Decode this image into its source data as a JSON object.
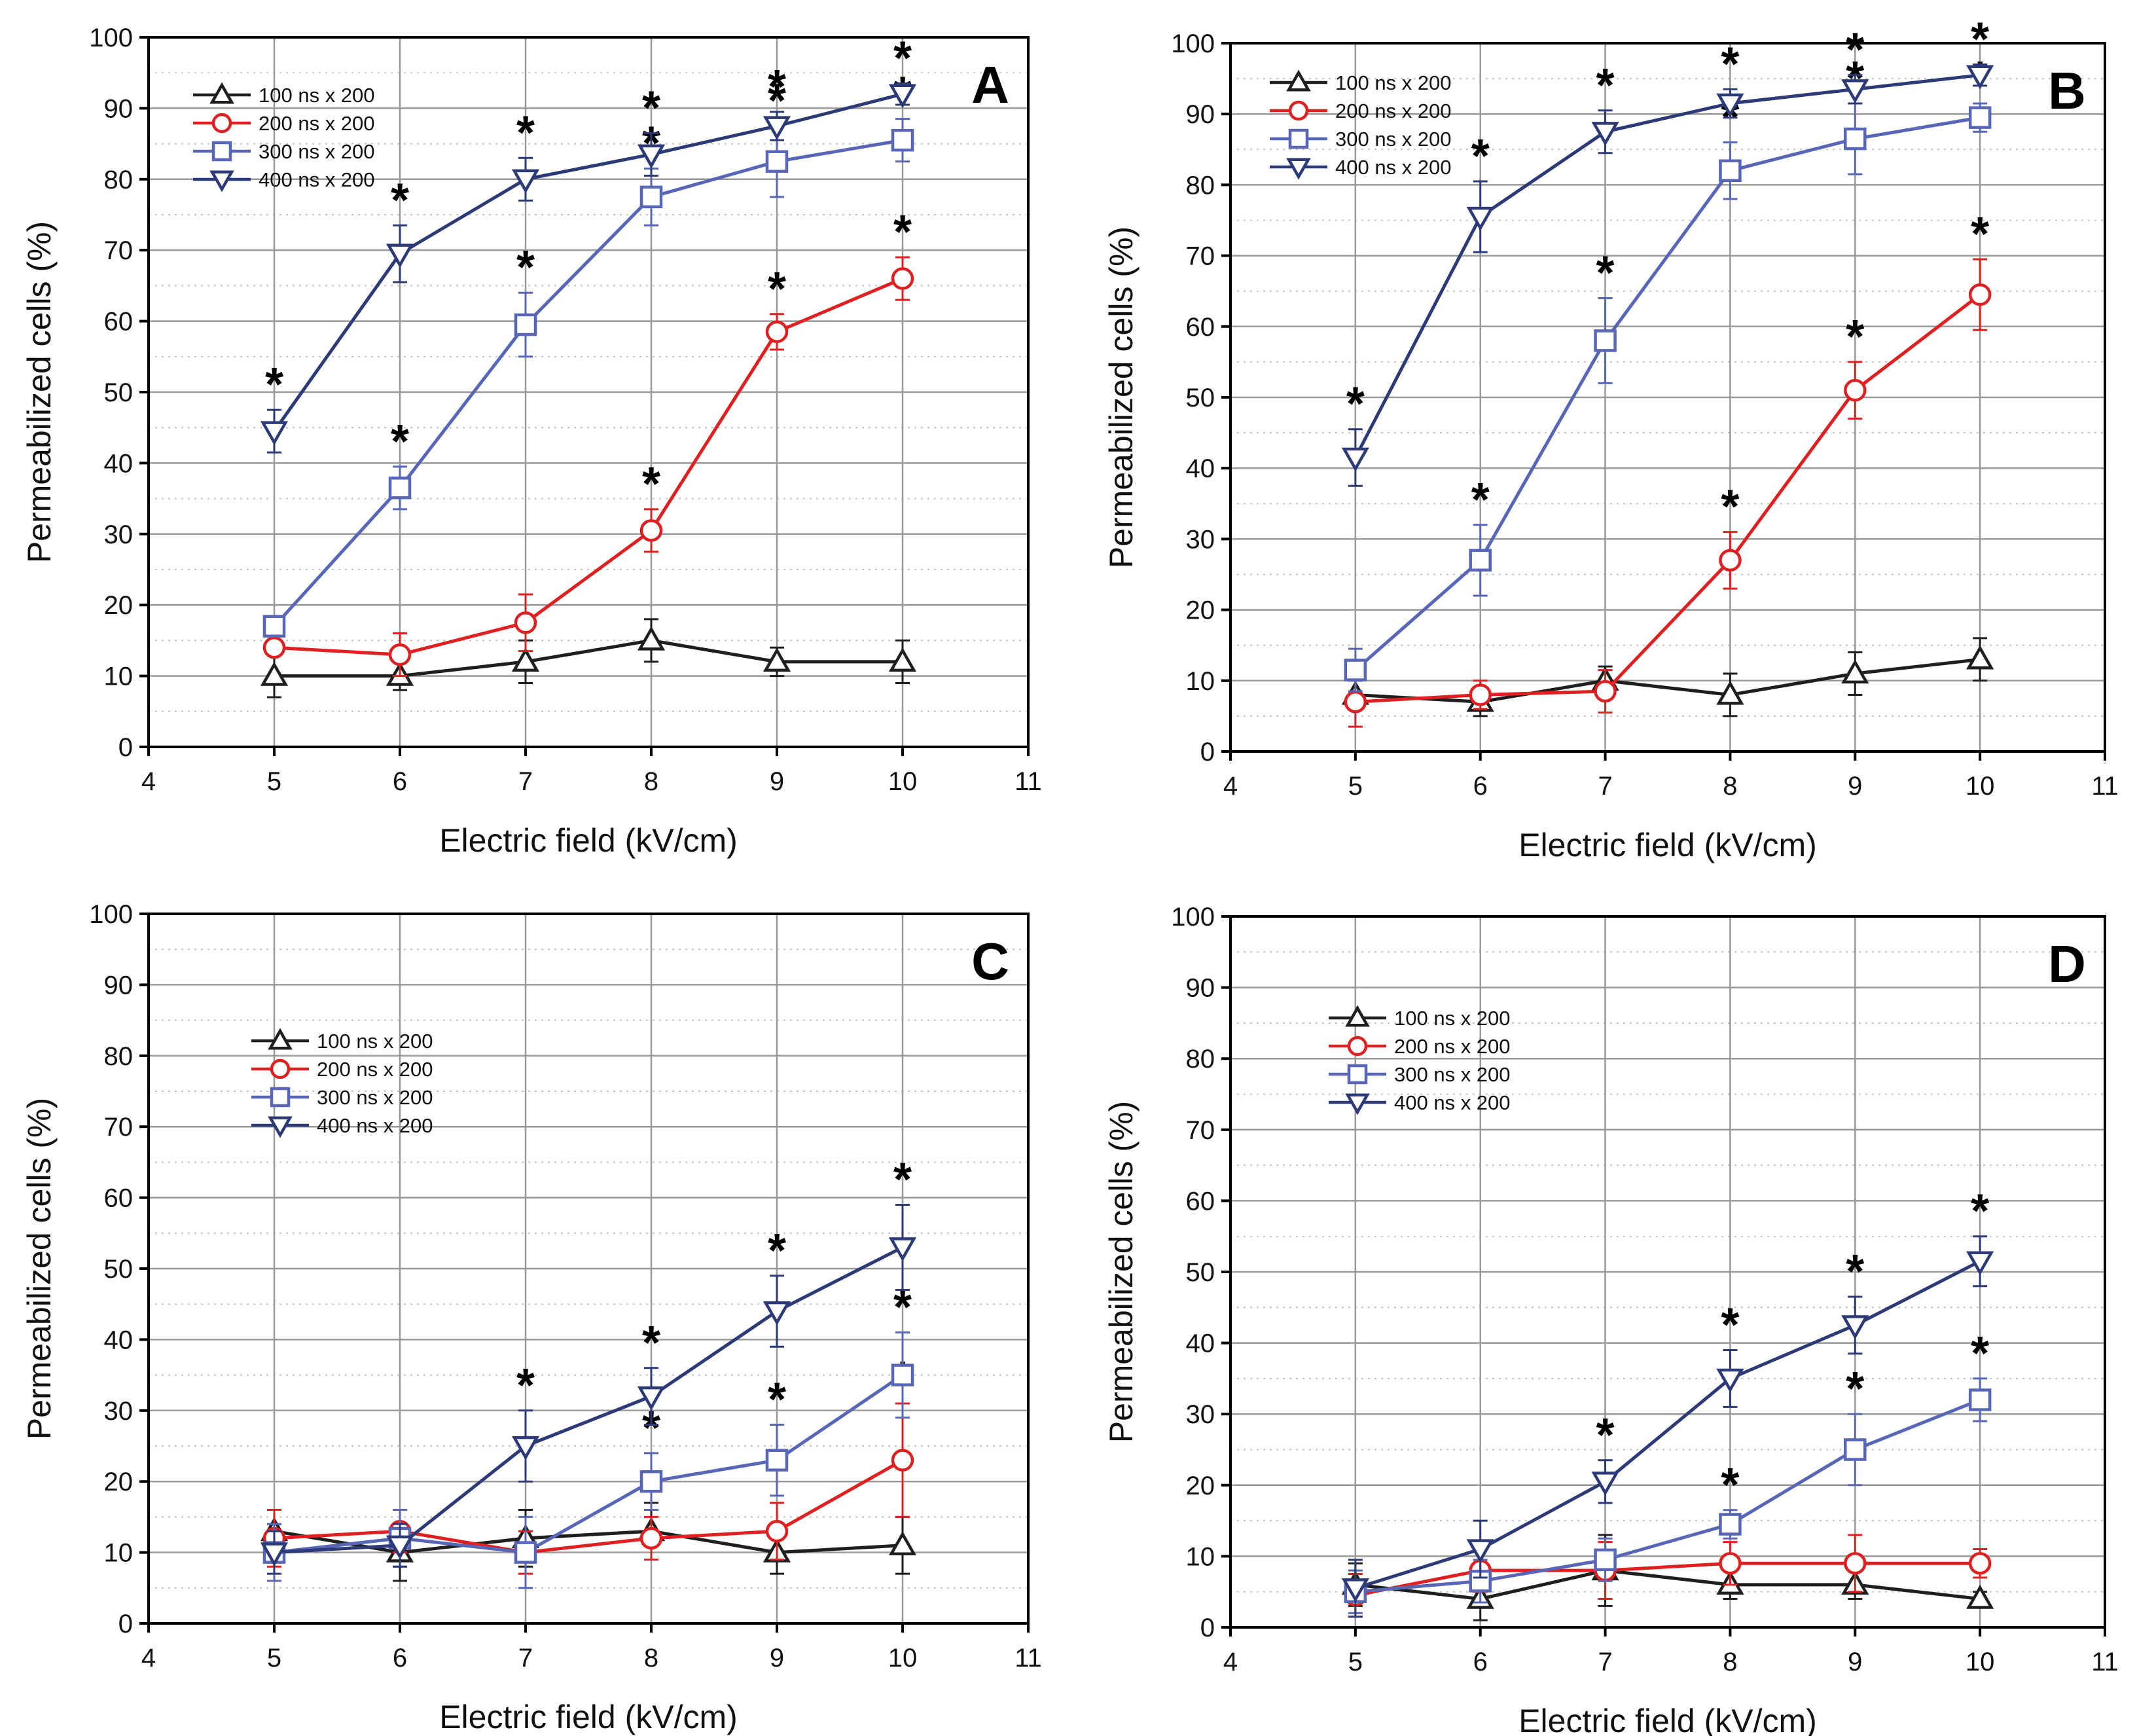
{
  "colors": {
    "s100": "#1f1f1f",
    "s200": "#e02020",
    "s300": "#5866b8",
    "s400": "#2d3a78",
    "grid": "#999999",
    "axis": "#000000",
    "star": "#000000"
  },
  "chart_data": [
    {
      "type": "line",
      "panel_label": "A",
      "xlabel": "Electric field (kV/cm)",
      "ylabel": "Permeabilized cells (%)",
      "xlim": [
        4,
        11
      ],
      "ylim": [
        0,
        100
      ],
      "x_ticks": [
        "4",
        "5",
        "6",
        "7",
        "8",
        "9",
        "10",
        "11"
      ],
      "y_ticks": [
        "0",
        "10",
        "20",
        "30",
        "40",
        "50",
        "60",
        "70",
        "80",
        "90",
        "100"
      ],
      "legend_position": "top-left",
      "x": [
        5,
        6,
        7,
        8,
        9,
        10
      ],
      "series": [
        {
          "key": "s100",
          "name": "100 ns x 200",
          "marker": "triangle-up",
          "values": [
            10,
            10,
            12,
            15,
            12,
            12
          ],
          "errors": [
            3,
            2,
            3,
            3,
            2,
            3
          ],
          "stars": [
            false,
            false,
            false,
            false,
            false,
            false
          ]
        },
        {
          "key": "s200",
          "name": "200 ns x 200",
          "marker": "circle",
          "values": [
            14,
            13,
            17.5,
            30.5,
            58.5,
            66
          ],
          "errors": [
            1,
            3,
            4,
            3,
            2.5,
            3
          ],
          "stars": [
            false,
            false,
            false,
            true,
            true,
            true
          ]
        },
        {
          "key": "s300",
          "name": "300 ns x 200",
          "marker": "square",
          "values": [
            17,
            36.5,
            59.5,
            77.5,
            82.5,
            85.5
          ],
          "errors": [
            1,
            3,
            4.5,
            4,
            5,
            3
          ],
          "stars": [
            false,
            true,
            true,
            true,
            true,
            true
          ]
        },
        {
          "key": "s400",
          "name": "400 ns x 200",
          "marker": "triangle-down",
          "values": [
            44.5,
            69.5,
            80,
            83.5,
            87.5,
            92
          ],
          "errors": [
            3,
            4,
            3,
            3,
            2,
            1.5
          ],
          "stars": [
            true,
            true,
            true,
            true,
            true,
            true
          ]
        }
      ]
    },
    {
      "type": "line",
      "panel_label": "B",
      "xlabel": "Electric field (kV/cm)",
      "ylabel": "Permeabilized cells (%)",
      "xlim": [
        4,
        11
      ],
      "ylim": [
        0,
        100
      ],
      "x_ticks": [
        "4",
        "5",
        "6",
        "7",
        "8",
        "9",
        "10",
        "11"
      ],
      "y_ticks": [
        "0",
        "10",
        "20",
        "30",
        "40",
        "50",
        "60",
        "70",
        "80",
        "90",
        "100"
      ],
      "legend_position": "top-left",
      "x": [
        5,
        6,
        7,
        8,
        9,
        10
      ],
      "series": [
        {
          "key": "s100",
          "name": "100 ns x 200",
          "marker": "triangle-up",
          "values": [
            8,
            7,
            10,
            8,
            11,
            13
          ],
          "errors": [
            2,
            2,
            2,
            3,
            3,
            3
          ],
          "stars": [
            false,
            false,
            false,
            false,
            false,
            false
          ]
        },
        {
          "key": "s200",
          "name": "200 ns x 200",
          "marker": "circle",
          "values": [
            7,
            8,
            8.5,
            27,
            51,
            64.5
          ],
          "errors": [
            3.5,
            2,
            3,
            4,
            4,
            5
          ],
          "stars": [
            false,
            false,
            false,
            true,
            true,
            true
          ]
        },
        {
          "key": "s300",
          "name": "300 ns x 200",
          "marker": "square",
          "values": [
            11.5,
            27,
            58,
            82,
            86.5,
            89.5
          ],
          "errors": [
            3,
            5,
            6,
            4,
            5,
            2
          ],
          "stars": [
            false,
            true,
            true,
            true,
            true,
            true
          ]
        },
        {
          "key": "s400",
          "name": "400 ns x 200",
          "marker": "triangle-down",
          "values": [
            41.5,
            75.5,
            87.5,
            91.5,
            93.5,
            95.5
          ],
          "errors": [
            4,
            5,
            3,
            2,
            2,
            1.5
          ],
          "stars": [
            true,
            true,
            true,
            true,
            true,
            true
          ]
        }
      ]
    },
    {
      "type": "line",
      "panel_label": "C",
      "xlabel": "Electric field (kV/cm)",
      "ylabel": "Permeabilized cells (%)",
      "xlim": [
        4,
        11
      ],
      "ylim": [
        0,
        100
      ],
      "x_ticks": [
        "4",
        "5",
        "6",
        "7",
        "8",
        "9",
        "10",
        "11"
      ],
      "y_ticks": [
        "0",
        "10",
        "20",
        "30",
        "40",
        "50",
        "60",
        "70",
        "80",
        "90",
        "100"
      ],
      "legend_position": "upper-left",
      "x": [
        5,
        6,
        7,
        8,
        9,
        10
      ],
      "series": [
        {
          "key": "s100",
          "name": "100 ns x 200",
          "marker": "triangle-up",
          "values": [
            13,
            10,
            12,
            13,
            10,
            11
          ],
          "errors": [
            3,
            4,
            4,
            4,
            3,
            4
          ],
          "stars": [
            false,
            false,
            false,
            false,
            false,
            false
          ]
        },
        {
          "key": "s200",
          "name": "200 ns x 200",
          "marker": "circle",
          "values": [
            12,
            13,
            10,
            12,
            13,
            23
          ],
          "errors": [
            4,
            3,
            3,
            3,
            4,
            8
          ],
          "stars": [
            false,
            false,
            false,
            false,
            false,
            true
          ]
        },
        {
          "key": "s300",
          "name": "300 ns x 200",
          "marker": "square",
          "values": [
            10,
            12,
            10,
            20,
            23,
            35
          ],
          "errors": [
            4,
            4,
            5,
            4,
            5,
            6
          ],
          "stars": [
            false,
            false,
            false,
            true,
            true,
            true
          ]
        },
        {
          "key": "s400",
          "name": "400 ns x 200",
          "marker": "triangle-down",
          "values": [
            10,
            11,
            25,
            32,
            44,
            53
          ],
          "errors": [
            3,
            3,
            5,
            4,
            5,
            6
          ],
          "stars": [
            false,
            false,
            true,
            true,
            true,
            true
          ]
        }
      ]
    },
    {
      "type": "line",
      "panel_label": "D",
      "xlabel": "Electric field (kV/cm)",
      "ylabel": "Permeabilized cells (%)",
      "xlim": [
        4,
        11
      ],
      "ylim": [
        0,
        100
      ],
      "x_ticks": [
        "4",
        "5",
        "6",
        "7",
        "8",
        "9",
        "10",
        "11"
      ],
      "y_ticks": [
        "0",
        "10",
        "20",
        "30",
        "40",
        "50",
        "60",
        "70",
        "80",
        "90",
        "100"
      ],
      "legend_position": "upper-left",
      "x": [
        5,
        6,
        7,
        8,
        9,
        10
      ],
      "series": [
        {
          "key": "s100",
          "name": "100 ns x 200",
          "marker": "triangle-up",
          "values": [
            6,
            4,
            8,
            6,
            6,
            4
          ],
          "errors": [
            3,
            3,
            5,
            2,
            2,
            1
          ],
          "stars": [
            false,
            false,
            false,
            false,
            false,
            false
          ]
        },
        {
          "key": "s200",
          "name": "200 ns x 200",
          "marker": "circle",
          "values": [
            4.5,
            8,
            8,
            9,
            9,
            9
          ],
          "errors": [
            3,
            3,
            4,
            3,
            4,
            2
          ],
          "stars": [
            false,
            false,
            false,
            false,
            false,
            false
          ]
        },
        {
          "key": "s300",
          "name": "300 ns x 200",
          "marker": "square",
          "values": [
            5,
            6.5,
            9.5,
            14.5,
            25,
            32
          ],
          "errors": [
            3,
            3,
            3,
            2,
            5,
            3
          ],
          "stars": [
            false,
            false,
            false,
            true,
            true,
            true
          ]
        },
        {
          "key": "s400",
          "name": "400 ns x 200",
          "marker": "triangle-down",
          "values": [
            5.5,
            11,
            20.5,
            35,
            42.5,
            51.5
          ],
          "errors": [
            4,
            4,
            3,
            4,
            4,
            3.5
          ],
          "stars": [
            false,
            false,
            true,
            true,
            true,
            true
          ]
        }
      ]
    }
  ]
}
